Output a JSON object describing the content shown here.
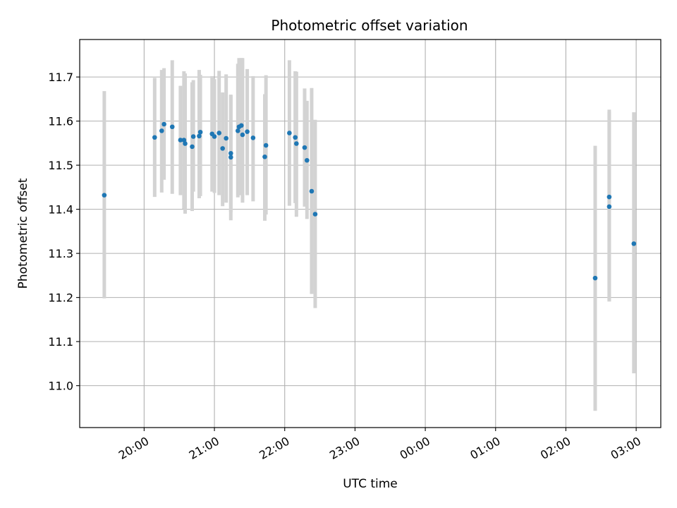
{
  "chart_data": {
    "type": "scatter",
    "title": "Photometric offset variation",
    "xlabel": "UTC time",
    "ylabel": "Photometric offset",
    "x_axis_type": "time",
    "xlim": [
      "19:05",
      "03:21"
    ],
    "ylim": [
      10.905,
      11.785
    ],
    "x_ticks": [
      "20:00",
      "21:00",
      "22:00",
      "23:00",
      "00:00",
      "01:00",
      "02:00",
      "03:00"
    ],
    "y_ticks": [
      11.0,
      11.1,
      11.2,
      11.3,
      11.4,
      11.5,
      11.6,
      11.7
    ],
    "grid": true,
    "legend": "none",
    "colors": {
      "point": "#1f77b4",
      "errorbar": "#d3d3d3",
      "grid": "#b0b0b0",
      "axis": "#000000"
    },
    "series": [
      {
        "points": [
          {
            "x": "19:26",
            "y": 11.432,
            "yerr_low": 11.198,
            "yerr_high": 11.668
          },
          {
            "x": "20:09",
            "y": 11.563,
            "yerr_low": 11.428,
            "yerr_high": 11.698
          },
          {
            "x": "20:15",
            "y": 11.578,
            "yerr_low": 11.438,
            "yerr_high": 11.716
          },
          {
            "x": "20:17",
            "y": 11.593,
            "yerr_low": 11.467,
            "yerr_high": 11.72
          },
          {
            "x": "20:24",
            "y": 11.587,
            "yerr_low": 11.435,
            "yerr_high": 11.738
          },
          {
            "x": "20:31",
            "y": 11.557,
            "yerr_low": 11.432,
            "yerr_high": 11.68
          },
          {
            "x": "20:34",
            "y": 11.557,
            "yerr_low": 11.401,
            "yerr_high": 11.713
          },
          {
            "x": "20:35",
            "y": 11.549,
            "yerr_low": 11.39,
            "yerr_high": 11.708
          },
          {
            "x": "20:41",
            "y": 11.542,
            "yerr_low": 11.396,
            "yerr_high": 11.688
          },
          {
            "x": "20:42",
            "y": 11.565,
            "yerr_low": 11.44,
            "yerr_high": 11.693
          },
          {
            "x": "20:47",
            "y": 11.566,
            "yerr_low": 11.425,
            "yerr_high": 11.716
          },
          {
            "x": "20:48",
            "y": 11.575,
            "yerr_low": 11.43,
            "yerr_high": 11.705
          },
          {
            "x": "20:58",
            "y": 11.571,
            "yerr_low": 11.44,
            "yerr_high": 11.702
          },
          {
            "x": "21:00",
            "y": 11.565,
            "yerr_low": 11.437,
            "yerr_high": 11.695
          },
          {
            "x": "21:04",
            "y": 11.573,
            "yerr_low": 11.432,
            "yerr_high": 11.714
          },
          {
            "x": "21:07",
            "y": 11.538,
            "yerr_low": 11.407,
            "yerr_high": 11.665
          },
          {
            "x": "21:10",
            "y": 11.561,
            "yerr_low": 11.415,
            "yerr_high": 11.706
          },
          {
            "x": "21:14",
            "y": 11.518,
            "yerr_low": 11.375,
            "yerr_high": 11.658
          },
          {
            "x": "21:14",
            "y": 11.527,
            "yerr_low": 11.393,
            "yerr_high": 11.66
          },
          {
            "x": "21:20",
            "y": 11.578,
            "yerr_low": 11.427,
            "yerr_high": 11.73
          },
          {
            "x": "21:21",
            "y": 11.587,
            "yerr_low": 11.432,
            "yerr_high": 11.743
          },
          {
            "x": "21:23",
            "y": 11.59,
            "yerr_low": 11.432,
            "yerr_high": 11.743
          },
          {
            "x": "21:24",
            "y": 11.569,
            "yerr_low": 11.415,
            "yerr_high": 11.743
          },
          {
            "x": "21:28",
            "y": 11.576,
            "yerr_low": 11.432,
            "yerr_high": 11.718
          },
          {
            "x": "21:33",
            "y": 11.562,
            "yerr_low": 11.418,
            "yerr_high": 11.702
          },
          {
            "x": "21:43",
            "y": 11.519,
            "yerr_low": 11.374,
            "yerr_high": 11.661
          },
          {
            "x": "21:44",
            "y": 11.545,
            "yerr_low": 11.388,
            "yerr_high": 11.704
          },
          {
            "x": "22:04",
            "y": 11.573,
            "yerr_low": 11.408,
            "yerr_high": 11.738
          },
          {
            "x": "22:09",
            "y": 11.563,
            "yerr_low": 11.414,
            "yerr_high": 11.713
          },
          {
            "x": "22:10",
            "y": 11.549,
            "yerr_low": 11.383,
            "yerr_high": 11.712
          },
          {
            "x": "22:17",
            "y": 11.54,
            "yerr_low": 11.406,
            "yerr_high": 11.674
          },
          {
            "x": "22:19",
            "y": 11.511,
            "yerr_low": 11.378,
            "yerr_high": 11.646
          },
          {
            "x": "22:23",
            "y": 11.441,
            "yerr_low": 11.208,
            "yerr_high": 11.675
          },
          {
            "x": "22:26",
            "y": 11.389,
            "yerr_low": 11.176,
            "yerr_high": 11.603
          },
          {
            "x": "02:25",
            "y": 11.244,
            "yerr_low": 10.943,
            "yerr_high": 11.544
          },
          {
            "x": "02:37",
            "y": 11.428,
            "yerr_low": 11.191,
            "yerr_high": 11.626
          },
          {
            "x": "02:37",
            "y": 11.406,
            "yerr_low": 11.191,
            "yerr_high": 11.621
          },
          {
            "x": "02:58",
            "y": 11.322,
            "yerr_low": 11.028,
            "yerr_high": 11.62
          }
        ]
      }
    ]
  }
}
